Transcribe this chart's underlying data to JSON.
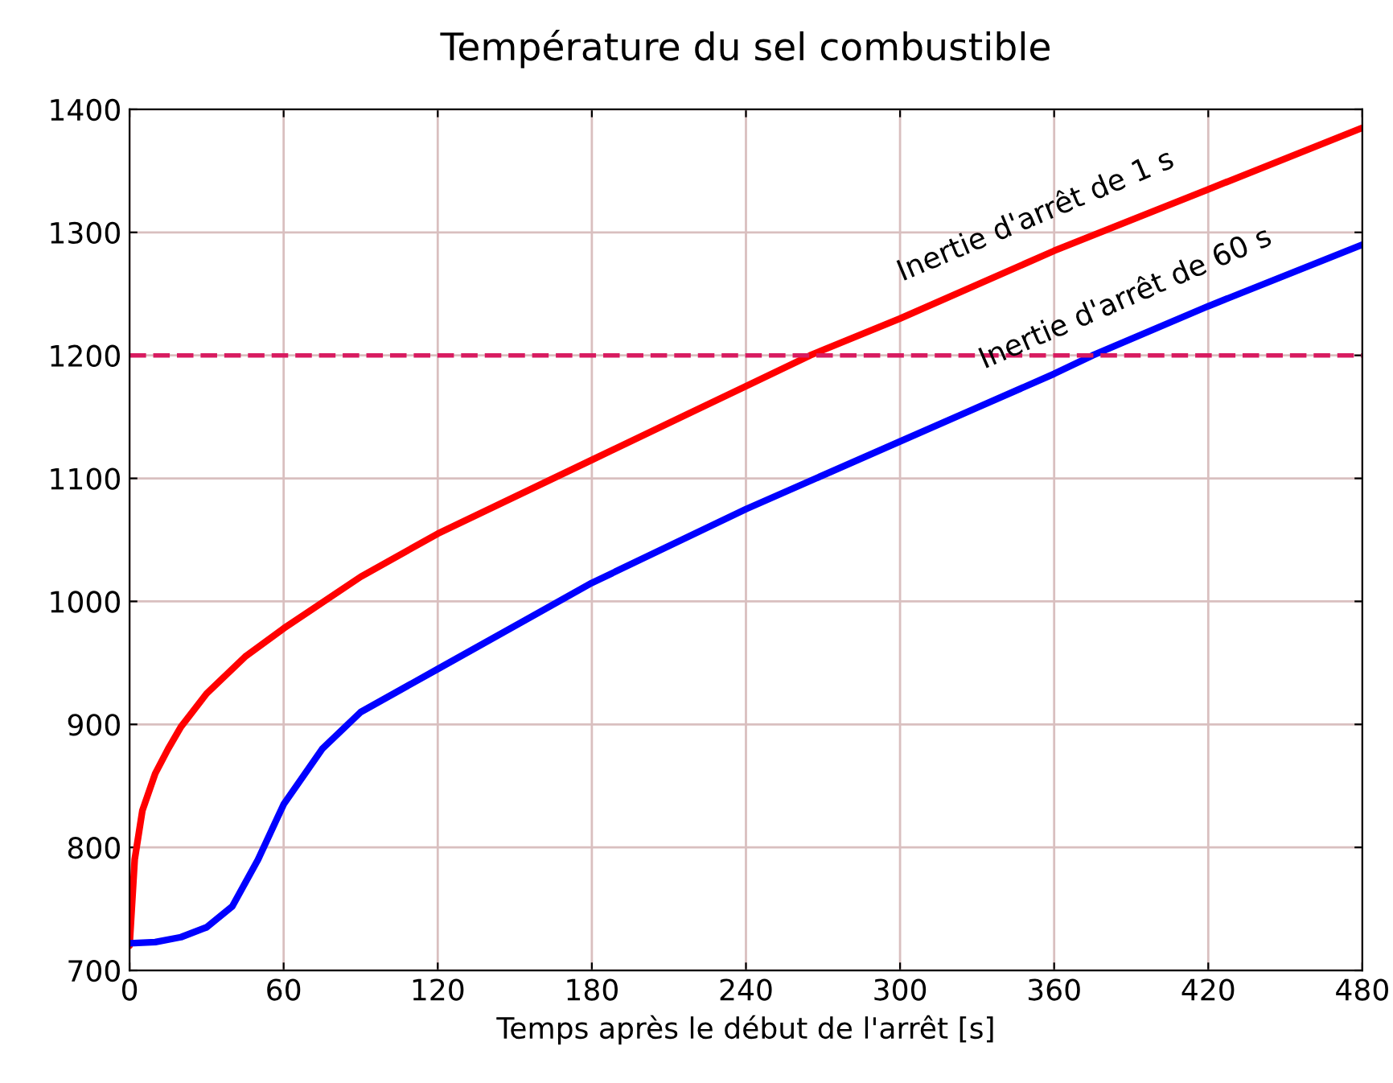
{
  "chart_data": {
    "type": "line",
    "title": "Température du sel combustible",
    "xlabel": "Temps après le début de l'arrêt [s]",
    "xlim": [
      0,
      480
    ],
    "ylim": [
      700,
      1400
    ],
    "xticks": [
      0,
      60,
      120,
      180,
      240,
      300,
      360,
      420,
      480
    ],
    "yticks": [
      700,
      800,
      900,
      1000,
      1100,
      1200,
      1300,
      1400
    ],
    "grid": true,
    "ref_lines": [
      {
        "axis": "y",
        "value": 1200,
        "color": "#d81b60",
        "line_style": "dashed"
      }
    ],
    "series": [
      {
        "name": "Inertie d'arrêt de 1 s",
        "color": "#ff0000",
        "x": [
          0,
          2,
          5,
          10,
          15,
          20,
          30,
          45,
          60,
          90,
          120,
          180,
          240,
          265,
          300,
          360,
          420,
          480
        ],
        "values": [
          720,
          790,
          830,
          860,
          880,
          898,
          925,
          955,
          978,
          1020,
          1055,
          1115,
          1175,
          1200,
          1230,
          1285,
          1335,
          1385
        ]
      },
      {
        "name": "Inertie d'arrêt de 60 s",
        "color": "#0000ff",
        "x": [
          0,
          10,
          20,
          30,
          40,
          50,
          60,
          75,
          90,
          120,
          180,
          240,
          300,
          360,
          375,
          420,
          480
        ],
        "values": [
          722,
          723,
          727,
          735,
          752,
          790,
          835,
          880,
          910,
          945,
          1015,
          1075,
          1130,
          1185,
          1200,
          1240,
          1290
        ]
      }
    ]
  }
}
